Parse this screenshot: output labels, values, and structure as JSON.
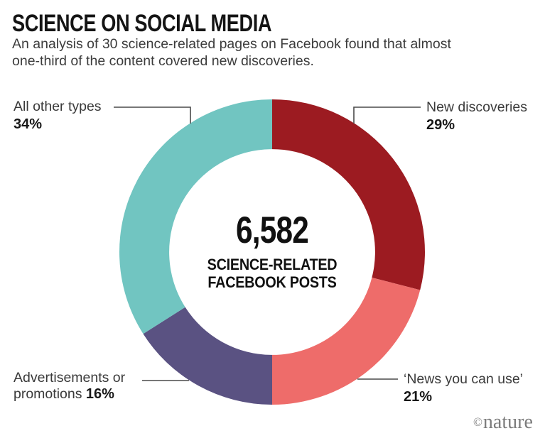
{
  "header": {
    "title": "SCIENCE ON SOCIAL MEDIA",
    "subtitle_lines": [
      "An analysis of 30 science-related pages on Facebook found that almost",
      "one-third of the content covered new discoveries."
    ]
  },
  "chart_data": {
    "type": "pie",
    "variant": "donut",
    "title": "SCIENCE ON SOCIAL MEDIA",
    "center_value": "6,582",
    "center_label_lines": [
      "SCIENCE-RELATED",
      "FACEBOOK POSTS"
    ],
    "start_angle_deg": 0,
    "direction": "clockwise",
    "inner_radius_ratio": 0.674,
    "segments": [
      {
        "label": "New discoveries",
        "value_pct": 29,
        "color": "#9C1B21"
      },
      {
        "label": "‘News you can use’",
        "value_pct": 21,
        "color": "#EE6C6A"
      },
      {
        "label": "Advertisements or promotions",
        "value_pct": 16,
        "color": "#5A5282"
      },
      {
        "label": "All other types",
        "value_pct": 34,
        "color": "#71C5C1"
      }
    ]
  },
  "callouts": {
    "top_left": {
      "label": "All other types",
      "pct": "34%"
    },
    "top_right": {
      "label": "New discoveries",
      "pct": "29%"
    },
    "bottom_left": {
      "label_line1": "Advertisements or",
      "label_line2": "promotions",
      "pct": "16%"
    },
    "bottom_right": {
      "label": "‘News you can use’",
      "pct": "21%"
    }
  },
  "footer": {
    "credit_symbol": "©",
    "credit_name": "nature"
  }
}
